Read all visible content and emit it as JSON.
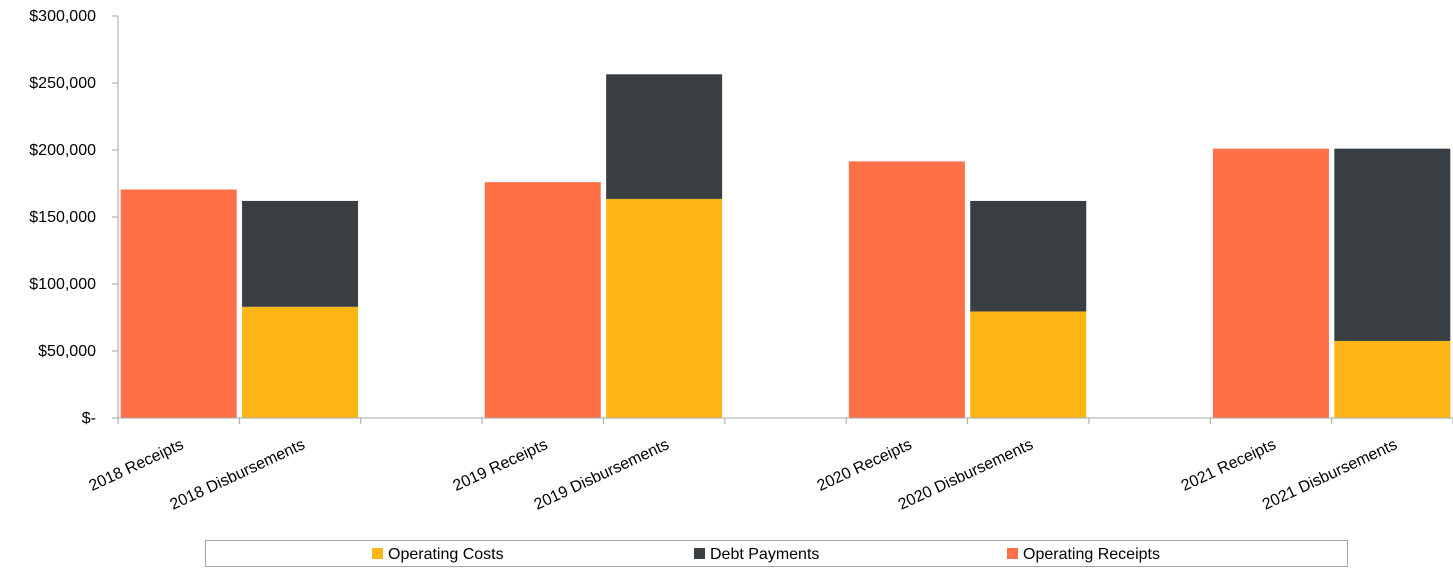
{
  "chart_data": {
    "type": "bar",
    "stacked": true,
    "title": "",
    "xlabel": "",
    "ylabel": "",
    "ylim": [
      0,
      300000
    ],
    "yticks": [
      {
        "value": 0,
        "label": "$-"
      },
      {
        "value": 50000,
        "label": "$50,000"
      },
      {
        "value": 100000,
        "label": "$100,000"
      },
      {
        "value": 150000,
        "label": "$150,000"
      },
      {
        "value": 200000,
        "label": "$200,000"
      },
      {
        "value": 250000,
        "label": "$250,000"
      },
      {
        "value": 300000,
        "label": "$300,000"
      }
    ],
    "categories": [
      "2018 Receipts",
      "2018 Disbursements",
      "",
      "2019 Receipts",
      "2019 Disbursements",
      "",
      "2020 Receipts",
      "2020 Disbursements",
      "",
      "2021 Receipts",
      "2021 Disbursements"
    ],
    "series": [
      {
        "name": "Operating Costs",
        "color": "#fdb515",
        "values": [
          0,
          83000,
          0,
          0,
          163500,
          0,
          0,
          79500,
          0,
          0,
          57500
        ]
      },
      {
        "name": "Debt Payments",
        "color": "#393e42",
        "values": [
          0,
          79000,
          0,
          0,
          93000,
          0,
          0,
          82500,
          0,
          0,
          143500
        ]
      },
      {
        "name": "Operating Receipts",
        "color": "#ff6f48",
        "values": [
          170500,
          0,
          0,
          176000,
          0,
          0,
          191500,
          0,
          0,
          201000,
          0
        ]
      }
    ],
    "legend": {
      "position": "bottom",
      "entries": [
        "Operating Costs",
        "Debt Payments",
        "Operating Receipts"
      ]
    },
    "grid": false
  }
}
